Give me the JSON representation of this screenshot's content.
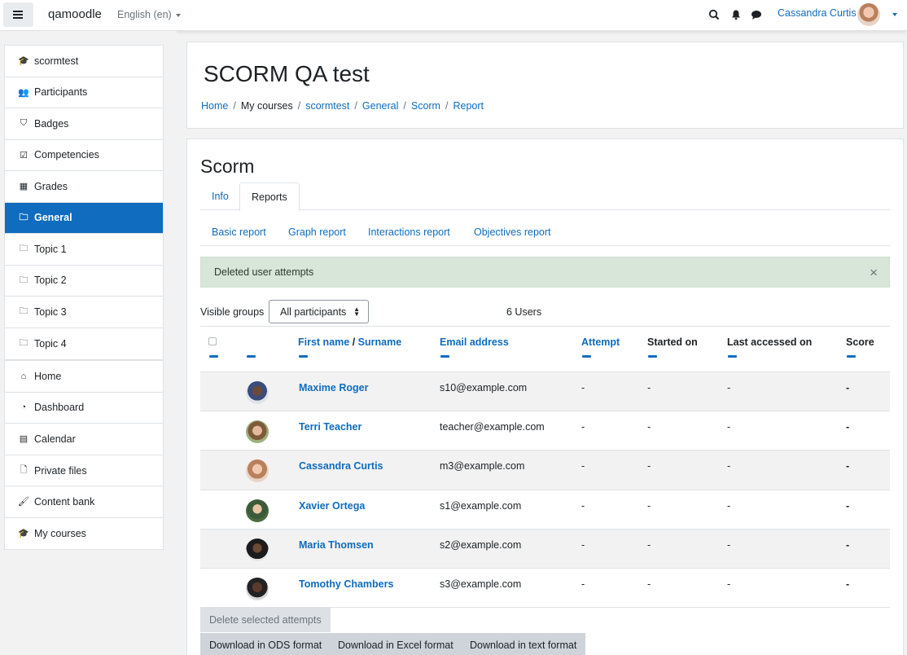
{
  "navbar": {
    "brand": "qamoodle",
    "language": "English (en)",
    "user_name": "Cassandra Curtis",
    "icons": [
      "search-icon",
      "bell-icon",
      "chat-icon"
    ]
  },
  "sidebar": {
    "course": [
      {
        "label": "scormtest",
        "icon": "mortarboard-icon"
      },
      {
        "label": "Participants",
        "icon": "users-icon"
      },
      {
        "label": "Badges",
        "icon": "shield-icon"
      },
      {
        "label": "Competencies",
        "icon": "check-square-icon"
      },
      {
        "label": "Grades",
        "icon": "table-icon"
      }
    ],
    "sections": [
      {
        "label": "General",
        "icon": "folder-icon",
        "active": true
      },
      {
        "label": "Topic 1",
        "icon": "folder-icon"
      },
      {
        "label": "Topic 2",
        "icon": "folder-icon"
      },
      {
        "label": "Topic 3",
        "icon": "folder-icon"
      },
      {
        "label": "Topic 4",
        "icon": "folder-icon"
      }
    ],
    "site": [
      {
        "label": "Home",
        "icon": "home-icon"
      },
      {
        "label": "Dashboard",
        "icon": "dashboard-icon"
      },
      {
        "label": "Calendar",
        "icon": "calendar-icon"
      },
      {
        "label": "Private files",
        "icon": "file-icon"
      }
    ],
    "extra": [
      {
        "label": "Content bank",
        "icon": "brush-icon"
      },
      {
        "label": "My courses",
        "icon": "mortarboard-icon"
      }
    ]
  },
  "header": {
    "title": "SCORM QA test",
    "breadcrumb": [
      "Home",
      "My courses",
      "scormtest",
      "General",
      "Scorm",
      "Report"
    ]
  },
  "activity": {
    "title": "Scorm",
    "tabs": [
      "Info",
      "Reports"
    ],
    "active_tab": "Reports",
    "report_links": [
      "Basic report",
      "Graph report",
      "Interactions report",
      "Objectives report"
    ],
    "alert": "Deleted user attempts",
    "groups_label": "Visible groups",
    "groups_value": "All participants",
    "users_count": "6 Users"
  },
  "table": {
    "columns": {
      "first_name": "First name",
      "slash": "/",
      "surname": "Surname",
      "email": "Email address",
      "attempt": "Attempt",
      "started": "Started on",
      "last_accessed": "Last accessed on",
      "score": "Score"
    },
    "rows": [
      {
        "name": "Maxime Roger",
        "email": "s10@example.com",
        "attempt": "-",
        "started": "-",
        "last": "-",
        "score": "-"
      },
      {
        "name": "Terri Teacher",
        "email": "teacher@example.com",
        "attempt": "-",
        "started": "-",
        "last": "-",
        "score": "-"
      },
      {
        "name": "Cassandra Curtis",
        "email": "m3@example.com",
        "attempt": "-",
        "started": "-",
        "last": "-",
        "score": "-"
      },
      {
        "name": "Xavier Ortega",
        "email": "s1@example.com",
        "attempt": "-",
        "started": "-",
        "last": "-",
        "score": "-"
      },
      {
        "name": "Maria Thomsen",
        "email": "s2@example.com",
        "attempt": "-",
        "started": "-",
        "last": "-",
        "score": "-"
      },
      {
        "name": "Tomothy Chambers",
        "email": "s3@example.com",
        "attempt": "-",
        "started": "-",
        "last": "-",
        "score": "-"
      }
    ]
  },
  "buttons": {
    "delete": "Delete selected attempts",
    "download_ods": "Download in ODS format",
    "download_excel": "Download in Excel format",
    "download_text": "Download in text format"
  },
  "colors": {
    "accent": "#0f6cbf",
    "alert_bg": "#d7e6d8",
    "row_alt": "#f2f2f2"
  }
}
